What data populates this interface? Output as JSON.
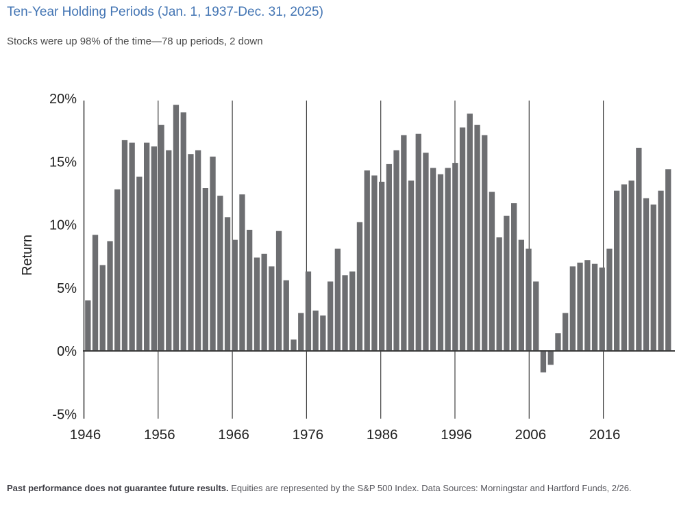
{
  "header": {
    "title": "Ten-Year Holding Periods (Jan. 1, 1937-Dec. 31, 2025)",
    "subtitle": "Stocks were up 98% of the time—78 up periods, 2 down"
  },
  "footer": {
    "disclaimer_bold": "Past performance does not guarantee future results.",
    "disclaimer_rest": " Equities are represented by the S&P 500 Index. Data Sources: Morningstar and Hartford Funds, 2/26."
  },
  "chart_data": {
    "type": "bar",
    "title": "Ten-Year Holding Periods (Jan. 1, 1937-Dec. 31, 2025)",
    "subtitle": "Stocks were up 98% of the time—78 up periods, 2 down",
    "xlabel": "",
    "ylabel": "Return",
    "ylim": [
      -5,
      20
    ],
    "grid": "vertical-decade-lines",
    "legend": "none",
    "y_ticks": [
      "20%",
      "15%",
      "10%",
      "5%",
      "0%",
      "-5%"
    ],
    "y_tick_values": [
      20,
      15,
      10,
      5,
      0,
      -5
    ],
    "x_ticks": [
      1946,
      1956,
      1966,
      1976,
      1986,
      1996,
      2006,
      2016
    ],
    "categories": [
      1946,
      1947,
      1948,
      1949,
      1950,
      1951,
      1952,
      1953,
      1954,
      1955,
      1956,
      1957,
      1958,
      1959,
      1960,
      1961,
      1962,
      1963,
      1964,
      1965,
      1966,
      1967,
      1968,
      1969,
      1970,
      1971,
      1972,
      1973,
      1974,
      1975,
      1976,
      1977,
      1978,
      1979,
      1980,
      1981,
      1982,
      1983,
      1984,
      1985,
      1986,
      1987,
      1988,
      1989,
      1990,
      1991,
      1992,
      1993,
      1994,
      1995,
      1996,
      1997,
      1998,
      1999,
      2000,
      2001,
      2002,
      2003,
      2004,
      2005,
      2006,
      2007,
      2008,
      2009,
      2010,
      2011,
      2012,
      2013,
      2014,
      2015,
      2016,
      2017,
      2018,
      2019,
      2020,
      2021,
      2022,
      2023,
      2024,
      2025
    ],
    "values": [
      4.0,
      9.2,
      6.8,
      8.7,
      12.8,
      16.7,
      16.5,
      13.8,
      16.5,
      16.2,
      17.9,
      15.9,
      19.5,
      18.9,
      15.6,
      15.9,
      12.9,
      15.4,
      12.3,
      10.6,
      8.8,
      12.4,
      9.6,
      7.4,
      7.7,
      6.7,
      9.5,
      5.6,
      0.9,
      3.0,
      6.3,
      3.2,
      2.8,
      5.5,
      8.1,
      6.0,
      6.3,
      10.2,
      14.3,
      13.9,
      13.4,
      14.8,
      15.9,
      17.1,
      13.5,
      17.2,
      15.7,
      14.5,
      14.0,
      14.5,
      14.9,
      17.7,
      18.8,
      17.9,
      17.1,
      12.6,
      9.0,
      10.7,
      11.7,
      8.8,
      8.1,
      5.5,
      -1.7,
      -1.1,
      1.4,
      3.0,
      6.7,
      7.0,
      7.2,
      6.9,
      6.6,
      8.1,
      12.7,
      13.2,
      13.5,
      16.1,
      12.1,
      11.6,
      12.7,
      14.4
    ],
    "up_periods": 78,
    "down_periods": 2,
    "colors": {
      "bar": "#6d6e71",
      "grid": "#3f3f3f",
      "axis": "#3a3a3a",
      "tick_text": "#1f1f1f",
      "title_accent": "#4274b3"
    }
  }
}
